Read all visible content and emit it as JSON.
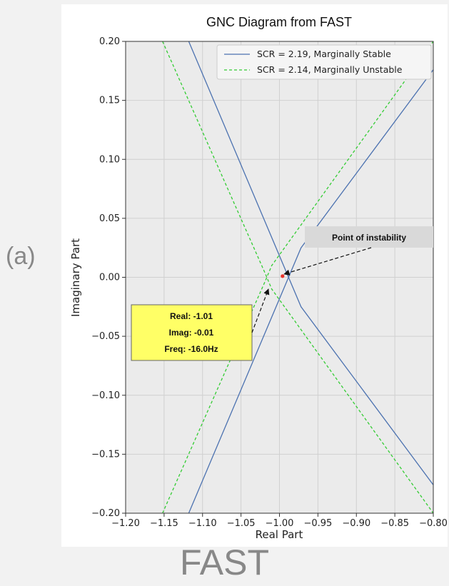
{
  "panel_label": "(a)",
  "caption": "FAST",
  "chart_data": {
    "type": "line",
    "title": "GNC Diagram from FAST",
    "xlabel": "Real Part",
    "ylabel": "Imaginary Part",
    "xlim": [
      -1.2,
      -0.8
    ],
    "ylim": [
      -0.2,
      0.2
    ],
    "xticks": [
      -1.2,
      -1.15,
      -1.1,
      -1.05,
      -1.0,
      -0.95,
      -0.9,
      -0.85,
      -0.8
    ],
    "xtick_labels": [
      "−1.20",
      "−1.15",
      "−1.10",
      "−1.05",
      "−1.00",
      "−0.95",
      "−0.90",
      "−0.85",
      "−0.80"
    ],
    "yticks": [
      -0.2,
      -0.15,
      -0.1,
      -0.05,
      0.0,
      0.05,
      0.1,
      0.15,
      0.2
    ],
    "ytick_labels": [
      "−0.20",
      "−0.15",
      "−0.10",
      "−0.05",
      "0.00",
      "0.05",
      "0.10",
      "0.15",
      "0.20"
    ],
    "grid": true,
    "legend_position": "top-right",
    "series": [
      {
        "name": "SCR = 2.19, Marginally Stable",
        "color": "#4c72b0",
        "style": "solid",
        "segments": [
          [
            [
              -1.118,
              0.2
            ],
            [
              -0.972,
              -0.025
            ],
            [
              -0.8,
              -0.176
            ]
          ],
          [
            [
              -1.118,
              -0.2
            ],
            [
              -0.972,
              0.025
            ],
            [
              -0.8,
              0.176
            ]
          ]
        ]
      },
      {
        "name": "SCR = 2.14, Marginally Unstable",
        "color": "#33cc33",
        "style": "dashed",
        "segments": [
          [
            [
              -1.152,
              0.2
            ],
            [
              -1.019,
              0.004
            ],
            [
              -1.01,
              -0.01
            ],
            [
              -0.8,
              -0.2
            ]
          ],
          [
            [
              -1.152,
              -0.2
            ],
            [
              -1.019,
              -0.004
            ],
            [
              -1.01,
              0.01
            ],
            [
              -0.8,
              0.2
            ]
          ]
        ]
      }
    ],
    "marker": {
      "x": -0.996,
      "y": 0.001,
      "color": "#e8322a"
    },
    "annotations": [
      {
        "text": "Point of instability",
        "target": [
          -0.996,
          0.001
        ],
        "box_color": "#d9d9d9"
      },
      {
        "lines": [
          "Real: -1.01",
          "Imag: -0.01",
          "Freq: -16.0Hz"
        ],
        "target": [
          -1.01,
          -0.01
        ],
        "box_color": "#ffff66"
      }
    ]
  }
}
